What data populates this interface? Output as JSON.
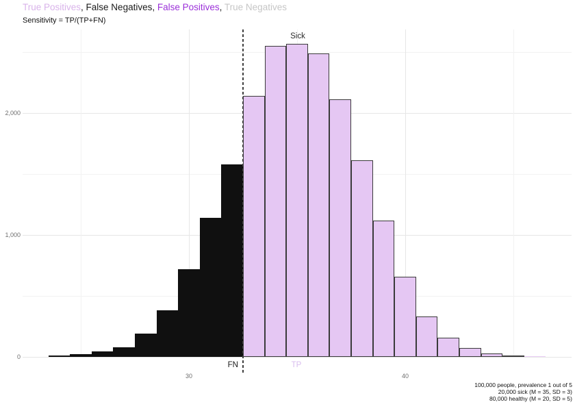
{
  "header": {
    "title_segments": [
      {
        "text": "True Positives",
        "color": "#d9b3ea"
      },
      {
        "text": ", ",
        "color": "#1a1a1a"
      },
      {
        "text": "False Negatives",
        "color": "#1a1a1a"
      },
      {
        "text": ", ",
        "color": "#1a1a1a"
      },
      {
        "text": "False Positives",
        "color": "#9b30d9"
      },
      {
        "text": ", ",
        "color": "#1a1a1a"
      },
      {
        "text": "True Negatives",
        "color": "#c6c6c6"
      }
    ],
    "subtitle": "Sensitivity = TP/(TP+FN)"
  },
  "chart_data": {
    "type": "bar",
    "subtype": "histogram",
    "bin_width": 1,
    "threshold": 32.5,
    "threshold_line_style": "dashed",
    "xlim": [
      22.3,
      47.7
    ],
    "ylim": [
      0,
      2685
    ],
    "grid": true,
    "x_major_gridlines": [
      30,
      40
    ],
    "x_minor_gridlines": [
      25,
      35,
      45
    ],
    "y_major_gridlines": [
      0,
      1000,
      2000
    ],
    "y_minor_gridlines": [
      500,
      1500,
      2500
    ],
    "x_ticks": [
      "30",
      "40"
    ],
    "x_tick_values": [
      30,
      40
    ],
    "y_ticks": [
      "0",
      "1,000",
      "2,000"
    ],
    "y_tick_values": [
      0,
      1000,
      2000
    ],
    "series": [
      {
        "name": "False Negatives",
        "role": "FN",
        "color": "#101010",
        "bin_centers": [
          24,
          25,
          26,
          27,
          28,
          29,
          30,
          31,
          32
        ],
        "counts": [
          8,
          25,
          45,
          80,
          190,
          380,
          720,
          1140,
          1580
        ]
      },
      {
        "name": "True Positives",
        "role": "TP",
        "color": "#e5c7f3",
        "outline": "#3a3a3a",
        "bin_centers": [
          33,
          34,
          35,
          36,
          37,
          38,
          39,
          40,
          41,
          42,
          43,
          44,
          45,
          46
        ],
        "counts": [
          2140,
          2550,
          2565,
          2490,
          2110,
          1610,
          1120,
          660,
          330,
          160,
          75,
          30,
          12,
          5
        ]
      }
    ],
    "annotations": {
      "sick": "Sick",
      "fn": "FN",
      "tp": "TP"
    },
    "annotation_colors": {
      "sick": "#2b2b2b",
      "fn": "#1a1a1a",
      "tp": "#d9bdef"
    }
  },
  "caption": {
    "lines": [
      "100,000 people, prevalence 1 out of 5",
      "20,000 sick (M = 35, SD = 3)",
      "80,000 healthy (M = 20, SD = 5)"
    ]
  }
}
